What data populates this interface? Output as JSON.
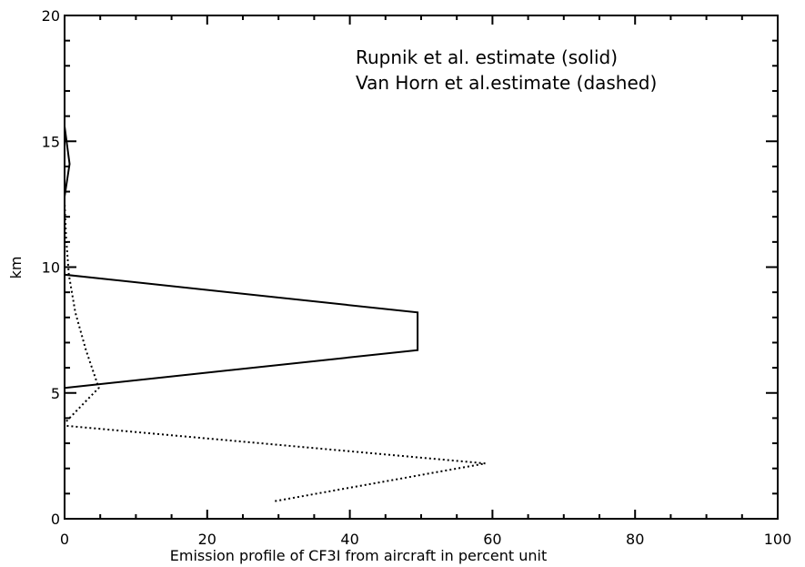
{
  "chart_data": {
    "type": "line",
    "title": "",
    "xlabel": "Emission profile of CF3I from aircraft in percent unit",
    "ylabel": "km",
    "xlim": [
      0,
      100
    ],
    "ylim": [
      0,
      20
    ],
    "x_ticks": [
      0,
      20,
      40,
      60,
      80,
      100
    ],
    "y_ticks": [
      0,
      5,
      10,
      15,
      20
    ],
    "grid": false,
    "legend_position": "top-right",
    "annotations": [
      "Rupnik et al. estimate (solid)",
      "Van Horn et al.estimate (dashed)"
    ],
    "series": [
      {
        "style": "solid",
        "color": "#000000",
        "points": [
          {
            "x": 0.0,
            "y": 5.2
          },
          {
            "x": 49.5,
            "y": 6.7
          },
          {
            "x": 49.5,
            "y": 8.2
          },
          {
            "x": 0.0,
            "y": 9.7
          },
          {
            "x": 0.0,
            "y": 12.8
          },
          {
            "x": 0.7,
            "y": 14.1
          },
          {
            "x": 0.0,
            "y": 15.6
          }
        ]
      },
      {
        "style": "dotted",
        "color": "#000000",
        "points": [
          {
            "x": 29.5,
            "y": 0.7
          },
          {
            "x": 59.0,
            "y": 2.2
          },
          {
            "x": 0.0,
            "y": 3.7
          },
          {
            "x": 0.0,
            "y": 3.8
          },
          {
            "x": 4.8,
            "y": 5.2
          },
          {
            "x": 3.0,
            "y": 6.7
          },
          {
            "x": 1.5,
            "y": 8.2
          },
          {
            "x": 0.6,
            "y": 9.7
          },
          {
            "x": 0.2,
            "y": 11.2
          },
          {
            "x": 0.0,
            "y": 12.6
          }
        ]
      }
    ]
  }
}
